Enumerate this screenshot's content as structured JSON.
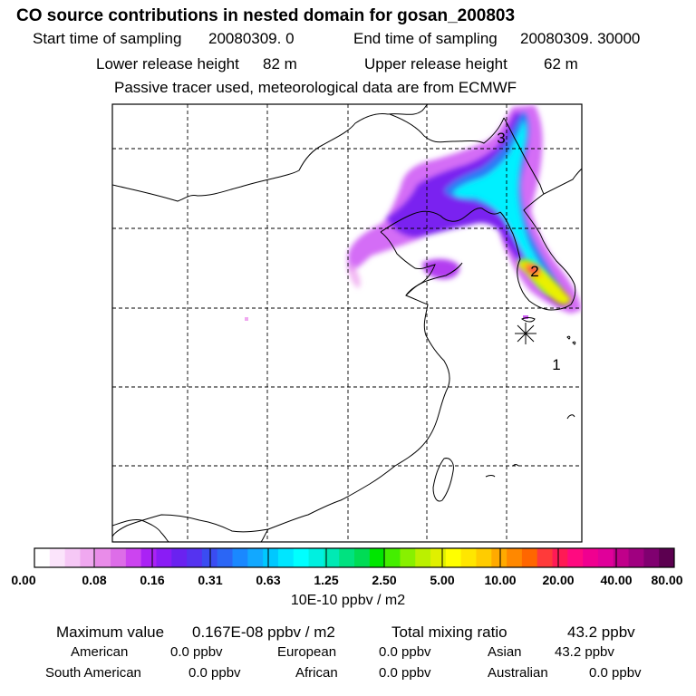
{
  "title": "CO  source contributions in nested domain for gosan_200803",
  "sampling": {
    "start_label": "Start time of sampling",
    "start_value": "20080309.     0",
    "end_label": "End time of sampling",
    "end_value": "20080309. 30000"
  },
  "release": {
    "lower_label": "Lower release height",
    "lower_value": "82 m",
    "upper_label": "Upper release height",
    "upper_value": "62 m"
  },
  "note": "Passive tracer used, meteorological data are from ECMWF",
  "map": {
    "receptor_marks": [
      {
        "label": "1"
      },
      {
        "label": "2"
      },
      {
        "label": "3"
      }
    ],
    "receptor_symbol": "asterisk-icon"
  },
  "colorbar": {
    "tick_labels": [
      "0.00",
      "0.08",
      "0.16",
      "0.31",
      "0.63",
      "1.25",
      "2.50",
      "5.00",
      "10.00",
      "20.00",
      "40.00",
      "80.00"
    ],
    "units": "10E-10 ppbv / m2",
    "colors": [
      "#ffffff",
      "#fbe4fb",
      "#f6c8f6",
      "#f0a8f0",
      "#e98ce9",
      "#dd6de8",
      "#cc44f0",
      "#aa22f5",
      "#8a1cf5",
      "#6a22f0",
      "#5533f0",
      "#3a4cf2",
      "#2b66f5",
      "#1a88ff",
      "#12a8ff",
      "#00c8ff",
      "#00e6ff",
      "#00ffff",
      "#00f0e0",
      "#00eab4",
      "#00e280",
      "#00dc55",
      "#00e600",
      "#44ee00",
      "#88f000",
      "#bbf000",
      "#e0f000",
      "#ffff00",
      "#ffe600",
      "#ffcc00",
      "#ffaa00",
      "#ff8800",
      "#ff6600",
      "#ff3a3a",
      "#ff1a55",
      "#ff0a80",
      "#f00090",
      "#e0009a",
      "#c0008a",
      "#a00080",
      "#800070",
      "#5c0050"
    ]
  },
  "summary": {
    "max_label": "Maximum value",
    "max_value": "0.167E-08 ppbv / m2",
    "total_label": "Total mixing ratio",
    "total_value": "43.2 ppbv"
  },
  "regions": [
    {
      "name": "American",
      "value": "0.0 ppbv"
    },
    {
      "name": "European",
      "value": "0.0 ppbv"
    },
    {
      "name": "Asian",
      "value": "43.2 ppbv"
    },
    {
      "name": "South American",
      "value": "0.0 ppbv"
    },
    {
      "name": "African",
      "value": "0.0 ppbv"
    },
    {
      "name": "Australian",
      "value": "0.0 ppbv"
    }
  ]
}
